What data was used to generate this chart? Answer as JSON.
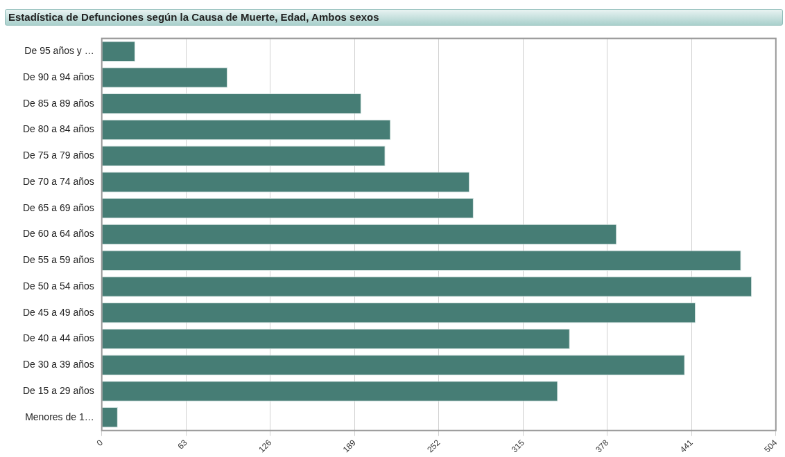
{
  "chart_data": {
    "type": "bar",
    "orientation": "horizontal",
    "title": "Estadística de Defunciones según la Causa de Muerte, Edad, Ambos sexos",
    "categories": [
      "De 95 años y …",
      "De 90 a 94 años",
      "De 85 a 89 años",
      "De 80 a 84 años",
      "De 75 a 79 años",
      "De 70 a 74 años",
      "De 65 a 69 años",
      "De 60 a 64 años",
      "De 55 a 59 años",
      "De 50 a 54 años",
      "De 45 a 49 años",
      "De 40 a 44 años",
      "De 30 a 39 años",
      "De 15 a 29 años",
      "Menores de 1…"
    ],
    "values": [
      25,
      94,
      194,
      216,
      212,
      275,
      278,
      385,
      478,
      486,
      444,
      350,
      436,
      341,
      12
    ],
    "color": "#467d75",
    "xlim": [
      0,
      504
    ],
    "xticks": [
      0,
      63,
      126,
      189,
      252,
      315,
      378,
      441,
      504
    ],
    "grid": "x",
    "legend": false
  }
}
